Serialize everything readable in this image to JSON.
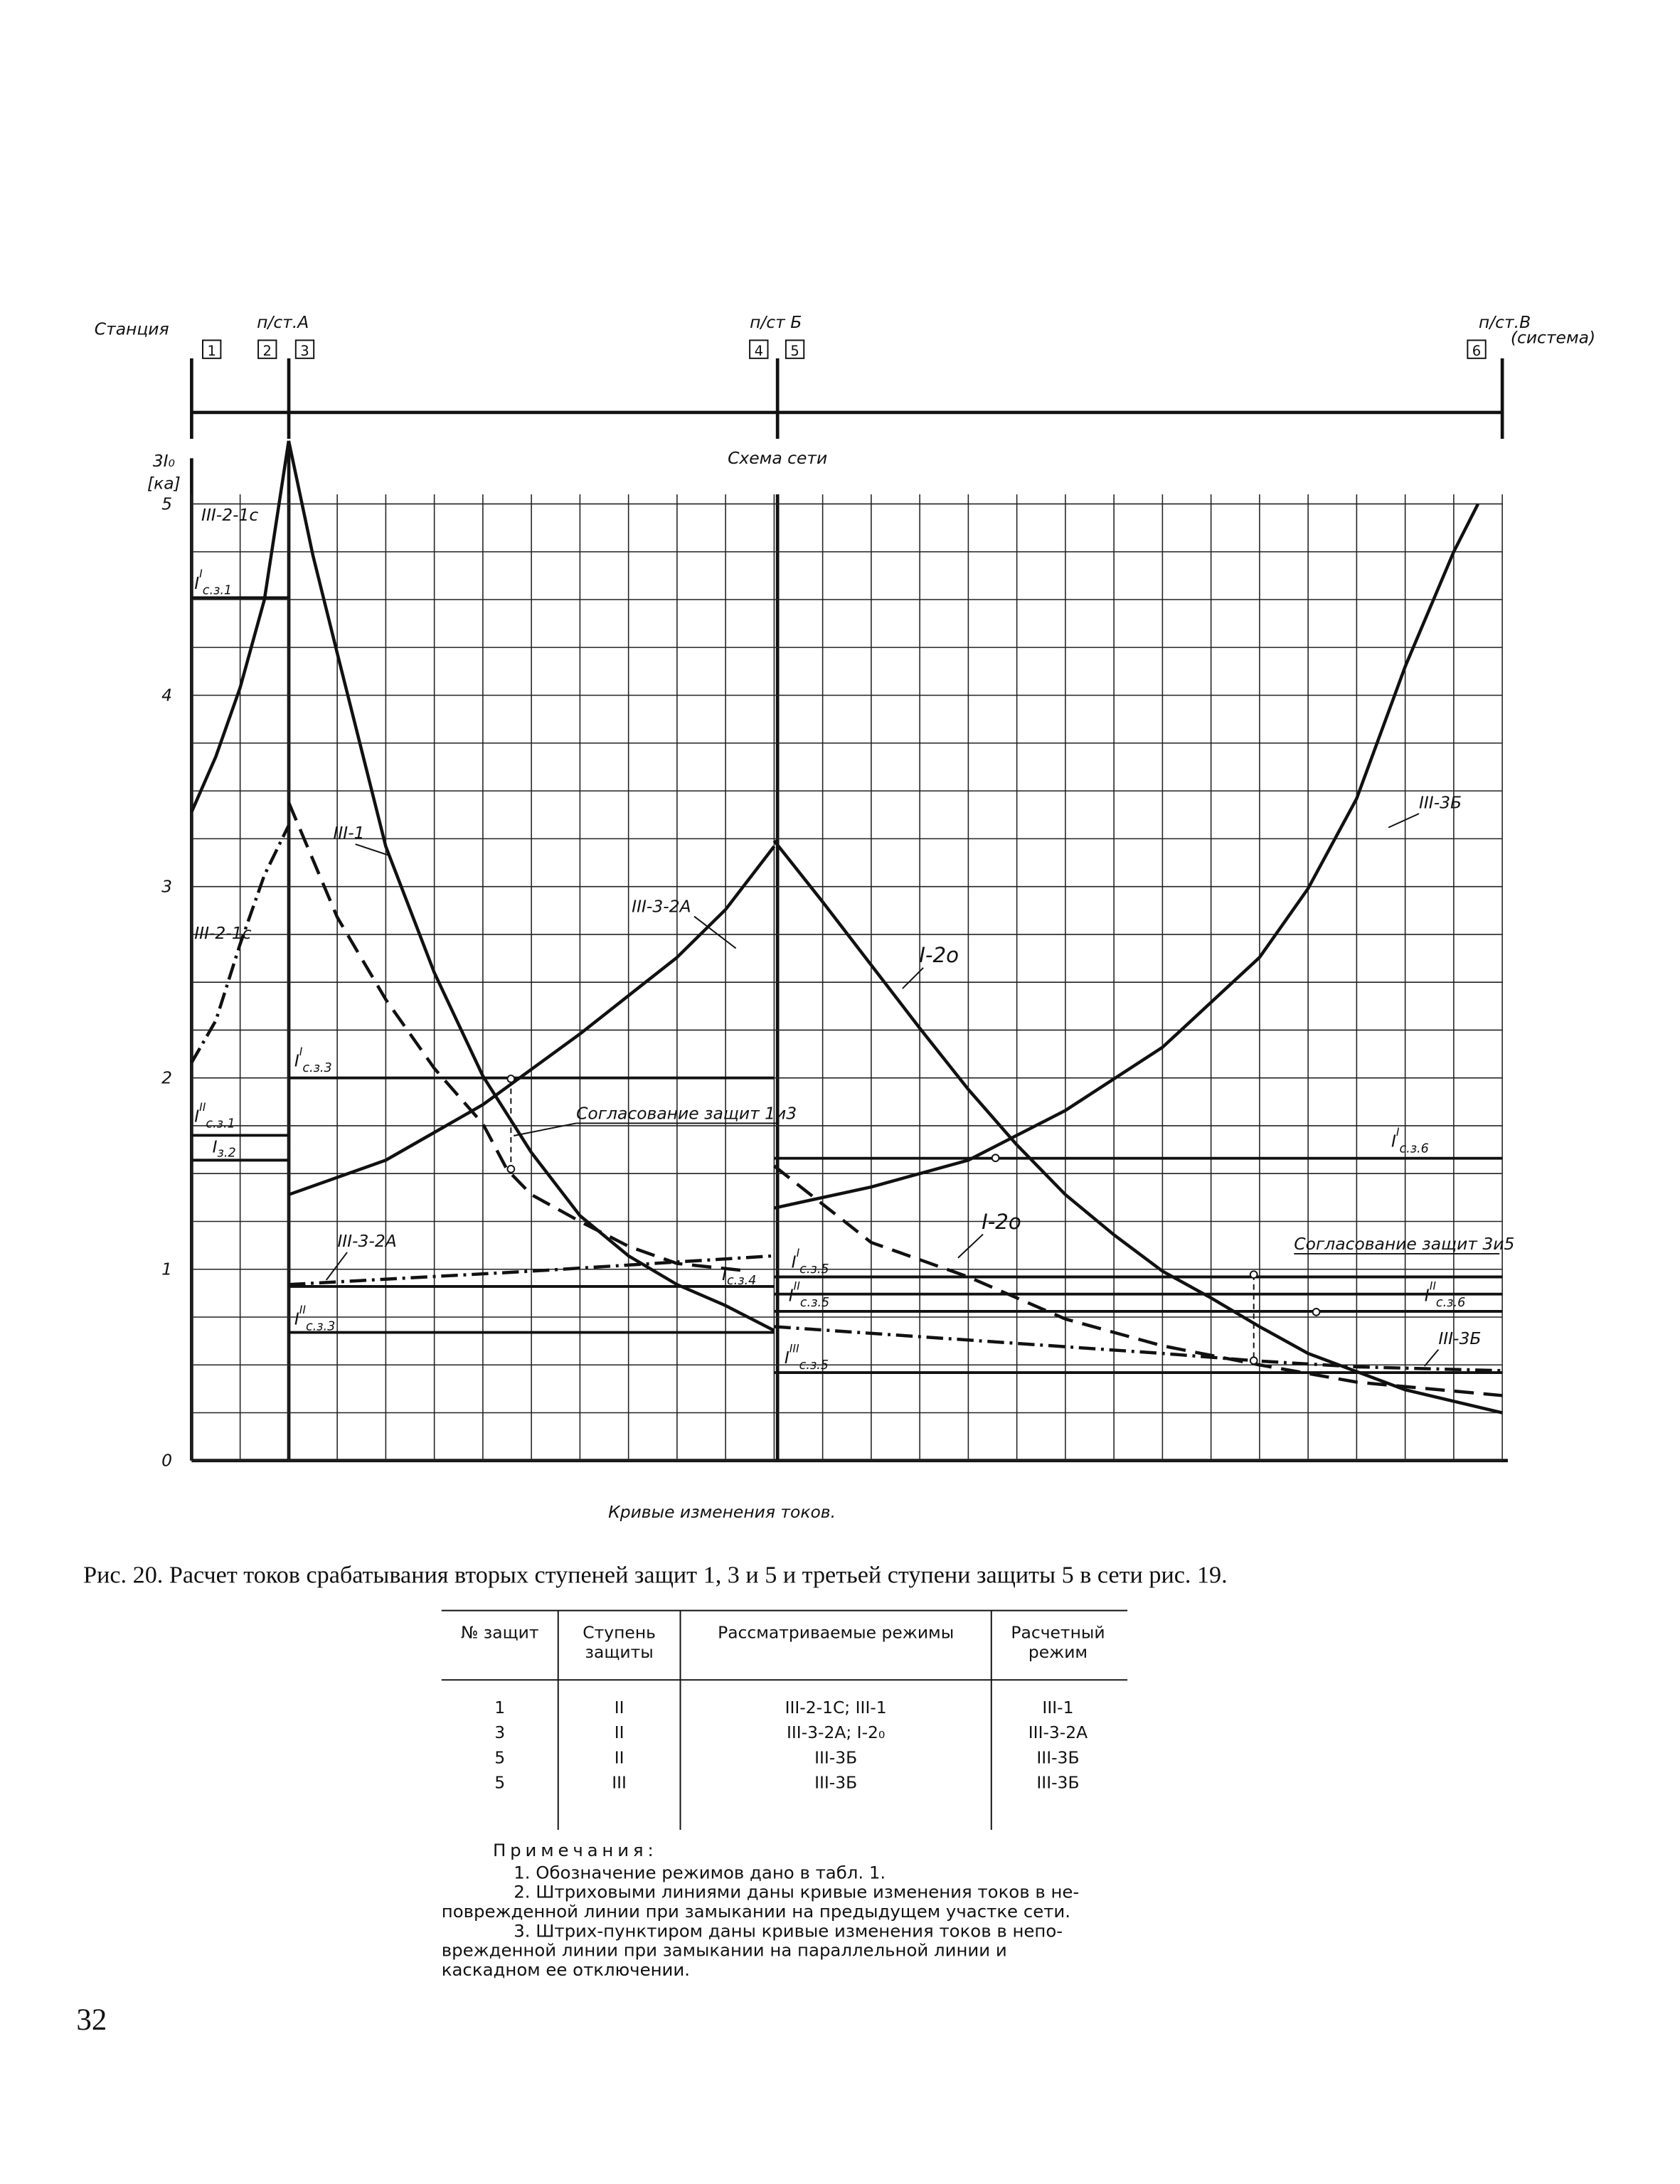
{
  "network": {
    "station": "Станция",
    "substation_a": "п/ст.А",
    "substation_b": "п/ст Б",
    "substation_c": "п/ст.В",
    "system": "(система)",
    "boxes": [
      "1",
      "2",
      "3",
      "4",
      "5",
      "6"
    ],
    "title": "Схема сети"
  },
  "chart_data": {
    "type": "line",
    "y_label": "3I₀",
    "y_unit": "[ка]",
    "x_label": "Кривые изменения токов.",
    "xlim": [
      0,
      27
    ],
    "ylim": [
      0,
      5.05
    ],
    "yticks": [
      0,
      1,
      2,
      3,
      4,
      5
    ],
    "grid": true,
    "series": [
      {
        "name": "III-2-1с",
        "style": "solid",
        "color": "#111111",
        "x": [
          0,
          0.5,
          1,
          1.5,
          2
        ],
        "y": [
          3.39,
          3.68,
          4.04,
          4.5,
          5.33
        ]
      },
      {
        "name": "III-1",
        "style": "solid",
        "color": "#111111",
        "x": [
          2,
          2.5,
          3,
          4,
          5,
          6,
          7,
          8,
          9,
          10,
          11,
          12
        ],
        "y": [
          5.33,
          4.73,
          4.22,
          3.21,
          2.55,
          2.01,
          1.61,
          1.28,
          1.07,
          0.92,
          0.81,
          0.68
        ]
      },
      {
        "name": "III-2-1с",
        "style": "dashdot",
        "color": "#111111",
        "x": [
          0,
          0.5,
          1,
          1.5,
          2
        ],
        "y": [
          2.08,
          2.3,
          2.7,
          3.06,
          3.32
        ]
      },
      {
        "style": "dashed",
        "color": "#111111",
        "x": [
          2,
          3,
          4,
          5,
          6,
          6.5,
          7,
          8,
          9,
          10,
          11.5
        ],
        "y": [
          3.44,
          2.84,
          2.41,
          2.05,
          1.76,
          1.52,
          1.39,
          1.25,
          1.12,
          1.03,
          0.99
        ]
      },
      {
        "name": "III-3-2А",
        "style": "solid",
        "color": "#111111",
        "x": [
          2,
          4,
          6,
          8,
          10,
          11,
          12
        ],
        "y": [
          1.39,
          1.57,
          1.86,
          2.23,
          2.63,
          2.88,
          3.21
        ]
      },
      {
        "name": "III-3-2А",
        "style": "dashdot",
        "color": "#111111",
        "x": [
          2,
          7,
          12
        ],
        "y": [
          0.92,
          0.99,
          1.07
        ]
      },
      {
        "name": "I-2о",
        "style": "solid",
        "color": "#111111",
        "x": [
          12,
          13,
          14,
          15,
          16,
          17,
          18,
          19,
          20,
          21,
          22,
          23,
          25,
          27
        ],
        "y": [
          3.24,
          2.92,
          2.59,
          2.26,
          1.94,
          1.65,
          1.39,
          1.18,
          0.99,
          0.85,
          0.7,
          0.56,
          0.37,
          0.25
        ]
      },
      {
        "name": "I-2о",
        "style": "dashed",
        "color": "#111111",
        "x": [
          12,
          14,
          16,
          18,
          20,
          22,
          24,
          27
        ],
        "y": [
          1.54,
          1.14,
          0.96,
          0.74,
          0.6,
          0.5,
          0.41,
          0.34
        ]
      },
      {
        "name": "III-3Б",
        "style": "solid",
        "color": "#111111",
        "x": [
          12,
          14,
          16,
          18,
          20,
          22,
          23,
          24,
          25,
          26,
          26.5
        ],
        "y": [
          1.32,
          1.43,
          1.57,
          1.83,
          2.16,
          2.63,
          2.99,
          3.46,
          4.15,
          4.75,
          5.0
        ]
      },
      {
        "name": "III-3Б",
        "style": "dashdot",
        "color": "#111111",
        "x": [
          12,
          16,
          20,
          22,
          24,
          27
        ],
        "y": [
          0.7,
          0.63,
          0.56,
          0.52,
          0.49,
          0.47
        ]
      }
    ],
    "thresholds": [
      {
        "symbol": "I",
        "stage": "I",
        "index": "с.з.1",
        "value": 4.51,
        "x": [
          0,
          2
        ]
      },
      {
        "symbol": "I",
        "stage": "II",
        "index": "с.з.1",
        "value": 1.7,
        "x": [
          0,
          2
        ]
      },
      {
        "symbol": "I",
        "index": "з.2",
        "value": 1.57,
        "x": [
          0,
          2
        ]
      },
      {
        "symbol": "I",
        "stage": "I",
        "index": "с.з.3",
        "value": 2.0,
        "x": [
          2,
          12
        ]
      },
      {
        "symbol": "I",
        "stage": "II",
        "index": "с.з.3",
        "value": 0.67,
        "x": [
          2,
          12
        ]
      },
      {
        "symbol": "I",
        "index": "с.з.4",
        "value": 0.91,
        "x": [
          2,
          12
        ]
      },
      {
        "symbol": "I",
        "stage": "I",
        "index": "с.з.5",
        "value": 0.96,
        "x": [
          12,
          27
        ]
      },
      {
        "symbol": "I",
        "stage": "II",
        "index": "с.з.5",
        "value": 0.87,
        "x": [
          12,
          27
        ]
      },
      {
        "symbol": "I",
        "stage": "III",
        "index": "с.з.5",
        "value": 0.46,
        "x": [
          12,
          27
        ]
      },
      {
        "symbol": "I",
        "stage": "I",
        "index": "с.з.6",
        "value": 1.58,
        "x": [
          12,
          27
        ]
      },
      {
        "symbol": "I",
        "stage": "II",
        "index": "с.з.6",
        "value": 0.78,
        "x": [
          12,
          27
        ]
      }
    ],
    "annotations": [
      "Согласование защит 1и3",
      "Согласование защит 3и5"
    ]
  },
  "caption": "Рис. 20. Расчет токов срабатывания вторых ступеней защит 1, 3 и 5 и третьей ступени защиты 5 в сети рис. 19.",
  "table": {
    "header": [
      [
        "№ защит"
      ],
      [
        "Ступень",
        "защиты"
      ],
      [
        "Рассматриваемые режимы"
      ],
      [
        "Расчетный",
        "режим"
      ]
    ],
    "rows": [
      [
        "1",
        "II",
        "III-2-1С; III-1",
        "III-1"
      ],
      [
        "3",
        "II",
        "III-3-2А; I-2₀",
        "III-3-2А"
      ],
      [
        "5",
        "II",
        "III-3Б",
        "III-3Б"
      ],
      [
        "5",
        "III",
        "III-3Б",
        "III-3Б"
      ]
    ]
  },
  "notes": {
    "title": "Примечания:",
    "lines": [
      "1. Обозначение режимов дано в табл. 1.",
      "2. Штриховыми линиями даны кривые изменения токов в не-",
      "поврежденной линии при замыкании на предыдущем участке сети.",
      "3. Штрих-пунктиром даны кривые изменения токов в непо-",
      "врежденной линии при замыкании на параллельной линии и",
      "каскадном ее отключении."
    ]
  },
  "page_number": "32"
}
